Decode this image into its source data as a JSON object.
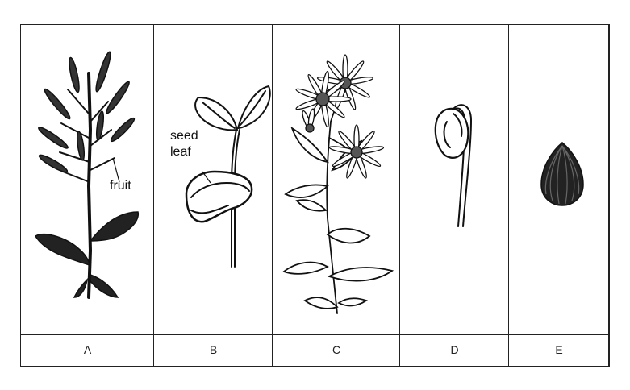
{
  "panels": [
    {
      "letter": "A"
    },
    {
      "letter": "B"
    },
    {
      "letter": "C"
    },
    {
      "letter": "D"
    },
    {
      "letter": "E"
    }
  ],
  "annotations": {
    "fruit": "fruit",
    "seed_leaf_line1": "seed",
    "seed_leaf_line2": "leaf"
  },
  "colors": {
    "ink": "#111111",
    "border": "#222222",
    "background": "#ffffff"
  }
}
